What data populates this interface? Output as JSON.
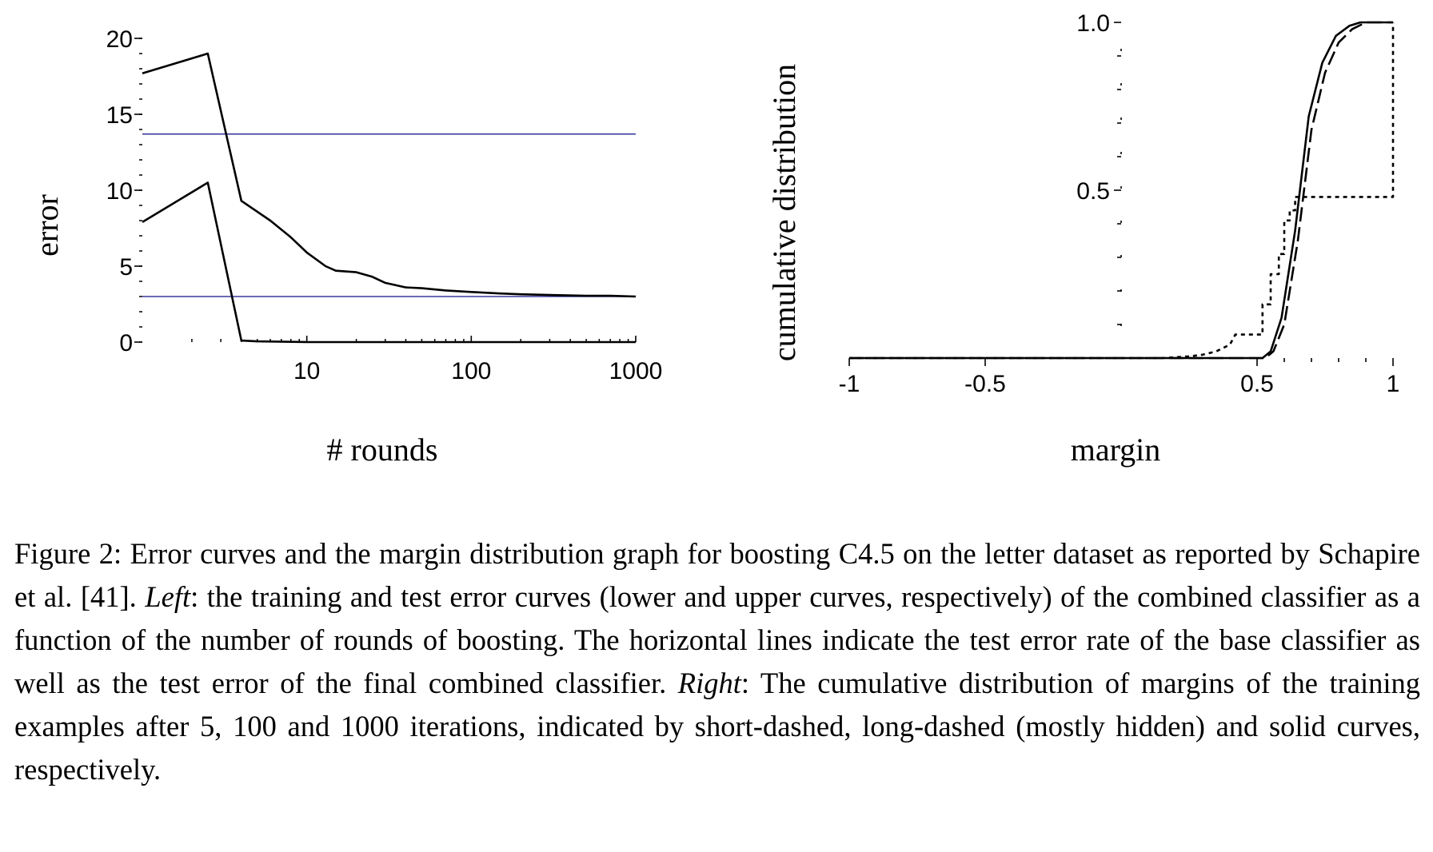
{
  "chart_data": [
    {
      "type": "line",
      "xlabel": "# rounds",
      "ylabel": "error",
      "x_scale": "log",
      "xlim": [
        1,
        1000
      ],
      "ylim": [
        0,
        20
      ],
      "x_ticks": [
        10,
        100,
        1000
      ],
      "y_ticks": [
        0,
        5,
        10,
        15,
        20
      ],
      "series": [
        {
          "color": "#000000",
          "style": "solid",
          "points": [
            [
              1,
              17.7
            ],
            [
              2.5,
              19.0
            ],
            [
              4,
              9.3
            ],
            [
              6,
              8.0
            ],
            [
              8,
              6.9
            ],
            [
              10,
              5.9
            ],
            [
              13,
              5.0
            ],
            [
              15,
              4.7
            ],
            [
              20,
              4.6
            ],
            [
              25,
              4.3
            ],
            [
              30,
              3.9
            ],
            [
              40,
              3.6
            ],
            [
              50,
              3.55
            ],
            [
              70,
              3.4
            ],
            [
              100,
              3.3
            ],
            [
              150,
              3.2
            ],
            [
              200,
              3.15
            ],
            [
              300,
              3.1
            ],
            [
              500,
              3.05
            ],
            [
              700,
              3.05
            ],
            [
              1000,
              3.0
            ]
          ]
        },
        {
          "color": "#000000",
          "style": "solid",
          "points": [
            [
              1,
              7.9
            ],
            [
              2.5,
              10.5
            ],
            [
              4,
              0.1
            ],
            [
              5,
              0.05
            ],
            [
              10,
              0
            ],
            [
              1000,
              0
            ]
          ]
        }
      ],
      "reference_lines": [
        {
          "y": 13.7,
          "color": "#3a3a9e"
        },
        {
          "y": 3.0,
          "color": "#3a3a9e"
        }
      ]
    },
    {
      "type": "line",
      "xlabel": "margin",
      "ylabel": "cumulative distribution",
      "xlim": [
        -1,
        1
      ],
      "ylim": [
        0,
        1
      ],
      "x_ticks": [
        -1,
        -0.5,
        0.5,
        1
      ],
      "x_tick_labels": [
        "-1",
        "-0.5",
        "0.5",
        "1"
      ],
      "y_ticks": [
        0.5,
        1.0
      ],
      "y_tick_labels": [
        "0.5",
        "1.0"
      ],
      "series": [
        {
          "color": "#000000",
          "style": "short-dashed",
          "points": [
            [
              -1,
              0
            ],
            [
              0.15,
              0
            ],
            [
              0.25,
              0.005
            ],
            [
              0.3,
              0.01
            ],
            [
              0.35,
              0.02
            ],
            [
              0.4,
              0.04
            ],
            [
              0.42,
              0.07
            ],
            [
              0.52,
              0.07
            ],
            [
              0.52,
              0.16
            ],
            [
              0.55,
              0.16
            ],
            [
              0.55,
              0.25
            ],
            [
              0.58,
              0.25
            ],
            [
              0.58,
              0.31
            ],
            [
              0.6,
              0.31
            ],
            [
              0.6,
              0.41
            ],
            [
              0.62,
              0.41
            ],
            [
              0.62,
              0.44
            ],
            [
              0.64,
              0.44
            ],
            [
              0.64,
              0.48
            ],
            [
              1,
              0.48
            ],
            [
              1,
              1
            ]
          ]
        },
        {
          "color": "#000000",
          "style": "long-dashed",
          "points": [
            [
              -1,
              0
            ],
            [
              0.53,
              0
            ],
            [
              0.56,
              0.02
            ],
            [
              0.6,
              0.1
            ],
            [
              0.65,
              0.35
            ],
            [
              0.7,
              0.68
            ],
            [
              0.75,
              0.85
            ],
            [
              0.8,
              0.94
            ],
            [
              0.85,
              0.98
            ],
            [
              0.9,
              1.0
            ],
            [
              1,
              1.0
            ]
          ]
        },
        {
          "color": "#000000",
          "style": "solid",
          "points": [
            [
              -1,
              0
            ],
            [
              0.52,
              0
            ],
            [
              0.55,
              0.02
            ],
            [
              0.59,
              0.12
            ],
            [
              0.64,
              0.38
            ],
            [
              0.69,
              0.72
            ],
            [
              0.74,
              0.88
            ],
            [
              0.79,
              0.96
            ],
            [
              0.84,
              0.99
            ],
            [
              0.88,
              1.0
            ],
            [
              1,
              1.0
            ]
          ]
        }
      ]
    }
  ],
  "caption": {
    "lead": "Figure 2: Error curves and the margin distribution graph for boosting C4.5 on the letter dataset as reported by Schapire et al. [41]. ",
    "left_label": "Left",
    "left_text": ": the training and test error curves (lower and upper curves, respectively) of the combined classifier as a function of the number of rounds of boosting. The horizontal lines indicate the test error rate of the base classifier as well as the test error of the final combined classifier. ",
    "right_label": "Right",
    "right_text": ": The cumulative distribution of margins of the training examples after 5, 100 and 1000 iterations, indicated by short-dashed, long-dashed (mostly hidden) and solid curves, respectively."
  }
}
